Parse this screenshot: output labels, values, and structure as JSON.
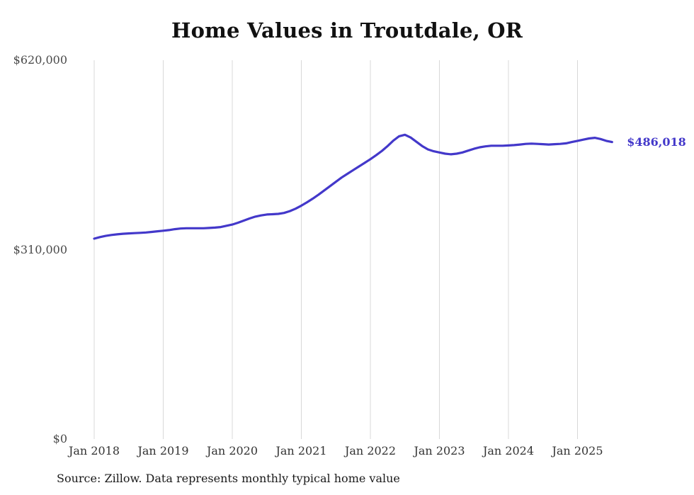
{
  "chart_data": {
    "type": "line",
    "title": "Home Values in Troutdale, OR",
    "source_note": "Source: Zillow. Data represents monthly typical home value",
    "current_value_label": "$486,018",
    "series_name": "Typical home value",
    "x_frequency": "monthly",
    "x_start": "2018-01",
    "x_end": "2025-07",
    "ylim": [
      0,
      620000
    ],
    "y_tick_labels": [
      "$620,000",
      "$310,000",
      "$0"
    ],
    "y_tick_values": [
      620000,
      310000,
      0
    ],
    "x_tick_labels": [
      "Jan 2018",
      "Jan 2019",
      "Jan 2020",
      "Jan 2021",
      "Jan 2022",
      "Jan 2023",
      "Jan 2024",
      "Jan 2025"
    ],
    "x_tick_month_index": [
      0,
      12,
      24,
      36,
      48,
      60,
      72,
      84
    ],
    "values": [
      328000,
      330500,
      332500,
      334000,
      335000,
      336000,
      336500,
      337000,
      337500,
      338000,
      339000,
      340000,
      341000,
      342000,
      343500,
      344500,
      345000,
      345000,
      345000,
      345000,
      345500,
      346000,
      347000,
      349000,
      351000,
      354000,
      357500,
      361000,
      364000,
      366000,
      367500,
      368000,
      368500,
      370000,
      373000,
      377000,
      382000,
      387500,
      393500,
      400000,
      407000,
      414000,
      421000,
      428000,
      434000,
      440000,
      446000,
      452000,
      458000,
      464500,
      471500,
      479500,
      488500,
      495500,
      498000,
      493500,
      486500,
      479500,
      474000,
      471000,
      469000,
      467000,
      466000,
      467000,
      469000,
      472000,
      475000,
      477500,
      479000,
      480000,
      480000,
      480000,
      480500,
      481000,
      482000,
      483000,
      483500,
      483000,
      482500,
      482000,
      482500,
      483000,
      484000,
      486000,
      488000,
      490000,
      492000,
      493000,
      491000,
      488000,
      486018
    ],
    "line_color": "#4338ca",
    "grid_color": "#d8d8d8",
    "grid": "vertical-only",
    "legend": "none"
  }
}
